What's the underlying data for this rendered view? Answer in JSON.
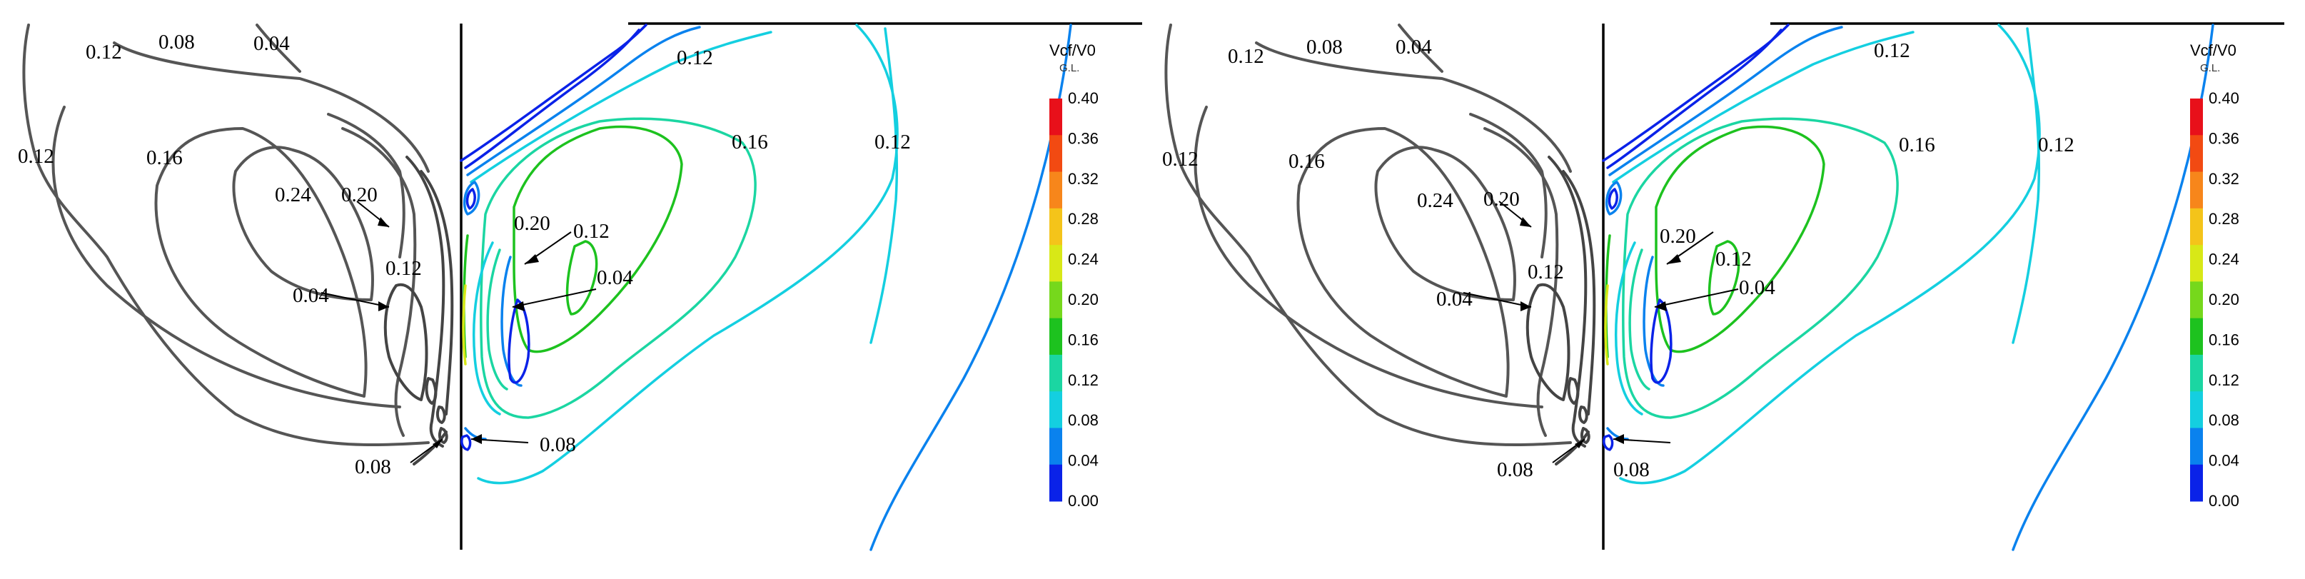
{
  "panels": [
    {
      "left_labels": [
        "0.12",
        "0.08",
        "0.04",
        "0.12",
        "0.16",
        "0.24",
        "0.20",
        "0.12",
        "0.04",
        "0.08"
      ],
      "right_labels": [
        "0.12",
        "0.16",
        "0.12",
        "0.20",
        "0.12",
        "0.04",
        "0.08"
      ]
    },
    {
      "left_labels": [
        "0.12",
        "0.08",
        "0.04",
        "0.12",
        "0.16",
        "0.24",
        "0.20",
        "0.12",
        "0.04",
        "0.08"
      ],
      "right_labels": [
        "0.12",
        "0.16",
        "0.12",
        "0.20",
        "0.12",
        "0.04",
        "0.08"
      ]
    }
  ],
  "colorbar": {
    "title": "Vcf/V0",
    "subtitle": "G.L.",
    "ticks": [
      "0.40",
      "0.36",
      "0.32",
      "0.28",
      "0.24",
      "0.20",
      "0.16",
      "0.12",
      "0.08",
      "0.04",
      "0.00"
    ],
    "colors": [
      "#e8101a",
      "#f24a12",
      "#f7861b",
      "#f4c41a",
      "#d8e817",
      "#76d81c",
      "#1dc21f",
      "#1bd6a2",
      "#14cfe0",
      "#0a82ee",
      "#0a22e8"
    ]
  }
}
